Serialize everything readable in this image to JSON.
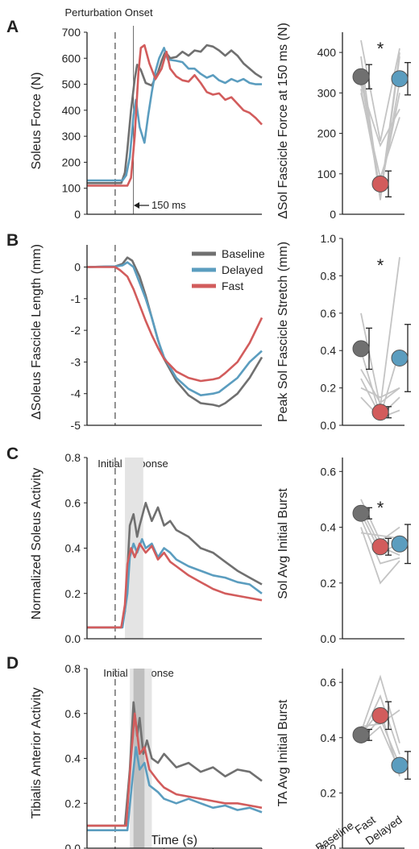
{
  "colors": {
    "baseline": "#707070",
    "delayed": "#5b9dbf",
    "fast": "#d25c5c",
    "subject": "#c4c4c4",
    "shade_light": "#e4e4e4",
    "shade_dark": "#b4b4b4"
  },
  "labels": {
    "panel_a": "A",
    "panel_b": "B",
    "panel_c": "C",
    "panel_d": "D",
    "perturbation_onset": "Perturbation Onset",
    "ms150": "150 ms",
    "initial_response": "Initial response",
    "x_axis_label": "Time (s)",
    "star": "*"
  },
  "legend": [
    "Baseline",
    "Delayed",
    "Fast"
  ],
  "conditions_x": [
    "Baseline",
    "Fast",
    "Delayed"
  ],
  "time_ticks": [
    "0.0",
    "0.4",
    "0.8",
    "1.2"
  ],
  "chart_data": [
    {
      "id": "A_trace",
      "type": "line",
      "ylabel": "Soleus Force (N)",
      "xlim": [
        -0.23,
        1.2
      ],
      "ylim": [
        0,
        700
      ],
      "yticks": [
        0,
        100,
        200,
        300,
        400,
        500,
        600,
        700
      ],
      "markers": {
        "onset": 0.0,
        "marker_150ms": 0.15
      },
      "series": [
        {
          "name": "Baseline",
          "x": [
            -0.23,
            0.05,
            0.08,
            0.1,
            0.13,
            0.16,
            0.18,
            0.21,
            0.25,
            0.3,
            0.35,
            0.38,
            0.41,
            0.45,
            0.5,
            0.55,
            0.6,
            0.65,
            0.7,
            0.75,
            0.8,
            0.85,
            0.9,
            0.95,
            1.0,
            1.05,
            1.1,
            1.15,
            1.2
          ],
          "y": [
            120,
            120,
            160,
            250,
            400,
            520,
            575,
            555,
            505,
            495,
            545,
            590,
            625,
            600,
            605,
            625,
            610,
            630,
            625,
            650,
            645,
            630,
            610,
            630,
            610,
            580,
            560,
            540,
            525
          ]
        },
        {
          "name": "Delayed",
          "x": [
            -0.23,
            0.06,
            0.09,
            0.12,
            0.15,
            0.17,
            0.2,
            0.24,
            0.27,
            0.3,
            0.33,
            0.36,
            0.4,
            0.43,
            0.5,
            0.55,
            0.6,
            0.65,
            0.7,
            0.75,
            0.8,
            0.85,
            0.9,
            0.95,
            1.0,
            1.05,
            1.1,
            1.15,
            1.2
          ],
          "y": [
            130,
            130,
            150,
            220,
            380,
            440,
            335,
            275,
            380,
            470,
            550,
            600,
            640,
            595,
            590,
            585,
            560,
            560,
            540,
            525,
            535,
            515,
            505,
            520,
            510,
            520,
            505,
            500,
            500
          ]
        },
        {
          "name": "Fast",
          "x": [
            -0.23,
            0.1,
            0.13,
            0.16,
            0.19,
            0.21,
            0.24,
            0.28,
            0.33,
            0.38,
            0.42,
            0.45,
            0.5,
            0.55,
            0.6,
            0.65,
            0.7,
            0.75,
            0.8,
            0.85,
            0.9,
            0.95,
            1.0,
            1.05,
            1.1,
            1.15,
            1.2
          ],
          "y": [
            110,
            110,
            140,
            300,
            540,
            640,
            650,
            580,
            520,
            560,
            625,
            560,
            530,
            515,
            510,
            535,
            505,
            470,
            460,
            465,
            440,
            450,
            425,
            400,
            390,
            370,
            345
          ]
        }
      ]
    },
    {
      "id": "A_dot",
      "type": "scatter",
      "ylabel": "ΔSol Fascicle Force at 150 ms (N)",
      "ylim": [
        0,
        450
      ],
      "yticks": [
        0,
        100,
        200,
        300,
        400
      ],
      "categories": [
        "Baseline",
        "Fast",
        "Delayed"
      ],
      "means": [
        340,
        75,
        335
      ],
      "errors": [
        30,
        32,
        40
      ],
      "significant": true,
      "subjects": [
        [
          430,
          180,
          410
        ],
        [
          390,
          45,
          400
        ],
        [
          360,
          35,
          390
        ],
        [
          340,
          50,
          330
        ],
        [
          320,
          170,
          260
        ],
        [
          300,
          90,
          240
        ],
        [
          310,
          60,
          300
        ]
      ]
    },
    {
      "id": "B_trace",
      "type": "line",
      "ylabel": "ΔSoleus Fascicle Length (mm)",
      "xlim": [
        -0.23,
        1.2
      ],
      "ylim": [
        -5,
        0.7
      ],
      "yticks": [
        0,
        -1,
        -2,
        -3,
        -4,
        -5
      ],
      "markers": {
        "onset": 0.0
      },
      "series": [
        {
          "name": "Baseline",
          "x": [
            -0.23,
            0.0,
            0.06,
            0.1,
            0.14,
            0.2,
            0.25,
            0.3,
            0.35,
            0.4,
            0.5,
            0.6,
            0.7,
            0.8,
            0.85,
            0.9,
            1.0,
            1.1,
            1.2
          ],
          "y": [
            0,
            0.02,
            0.1,
            0.3,
            0.2,
            -0.3,
            -0.9,
            -1.6,
            -2.3,
            -2.9,
            -3.6,
            -4.05,
            -4.3,
            -4.35,
            -4.4,
            -4.3,
            -4.0,
            -3.5,
            -2.85
          ]
        },
        {
          "name": "Delayed",
          "x": [
            -0.23,
            0.0,
            0.06,
            0.1,
            0.15,
            0.2,
            0.25,
            0.3,
            0.35,
            0.4,
            0.5,
            0.6,
            0.7,
            0.8,
            0.85,
            0.9,
            1.0,
            1.1,
            1.2
          ],
          "y": [
            0,
            0.02,
            0.05,
            0.15,
            0.0,
            -0.5,
            -1.0,
            -1.6,
            -2.3,
            -2.85,
            -3.5,
            -3.85,
            -4.05,
            -4.0,
            -3.95,
            -3.8,
            -3.5,
            -3.0,
            -2.65
          ]
        },
        {
          "name": "Fast",
          "x": [
            -0.23,
            0.0,
            0.04,
            0.1,
            0.15,
            0.2,
            0.25,
            0.3,
            0.35,
            0.4,
            0.5,
            0.6,
            0.7,
            0.8,
            0.85,
            0.9,
            1.0,
            1.1,
            1.2
          ],
          "y": [
            0,
            0,
            -0.1,
            -0.3,
            -0.7,
            -1.2,
            -1.7,
            -2.15,
            -2.55,
            -2.9,
            -3.3,
            -3.5,
            -3.6,
            -3.55,
            -3.5,
            -3.35,
            -3.0,
            -2.4,
            -1.6
          ]
        }
      ]
    },
    {
      "id": "B_dot",
      "type": "scatter",
      "ylabel": "Peak Sol Fascicle Stretch (mm)",
      "ylim": [
        0,
        1.0
      ],
      "yticks": [
        0.0,
        0.2,
        0.4,
        0.6,
        0.8,
        1.0
      ],
      "categories": [
        "Baseline",
        "Fast",
        "Delayed"
      ],
      "means": [
        0.41,
        0.07,
        0.36
      ],
      "errors": [
        0.11,
        0.03,
        0.18
      ],
      "significant": true,
      "subjects": [
        [
          0.6,
          0.1,
          0.9
        ],
        [
          0.4,
          0.05,
          0.4
        ],
        [
          0.3,
          0.12,
          0.2
        ],
        [
          0.25,
          0.05,
          0.15
        ],
        [
          0.2,
          0.15,
          0.2
        ],
        [
          0.15,
          0.04,
          0.08
        ]
      ]
    },
    {
      "id": "C_trace",
      "type": "line",
      "ylabel": "Normalized Soleus Activity",
      "xlim": [
        -0.23,
        1.2
      ],
      "ylim": [
        0,
        0.8
      ],
      "yticks": [
        0.0,
        0.2,
        0.4,
        0.6,
        0.8
      ],
      "markers": {
        "onset": 0.0
      },
      "shade": {
        "x0": 0.08,
        "x1": 0.23
      },
      "series": [
        {
          "name": "Baseline",
          "x": [
            -0.23,
            0.05,
            0.08,
            0.1,
            0.12,
            0.15,
            0.18,
            0.2,
            0.25,
            0.3,
            0.35,
            0.4,
            0.45,
            0.5,
            0.6,
            0.7,
            0.8,
            0.9,
            1.0,
            1.1,
            1.2
          ],
          "y": [
            0.05,
            0.05,
            0.12,
            0.3,
            0.5,
            0.55,
            0.45,
            0.5,
            0.6,
            0.52,
            0.58,
            0.5,
            0.52,
            0.48,
            0.45,
            0.4,
            0.38,
            0.34,
            0.3,
            0.27,
            0.24
          ]
        },
        {
          "name": "Delayed",
          "x": [
            -0.23,
            0.06,
            0.1,
            0.12,
            0.15,
            0.18,
            0.22,
            0.25,
            0.3,
            0.35,
            0.4,
            0.45,
            0.5,
            0.6,
            0.7,
            0.8,
            0.9,
            1.0,
            1.1,
            1.2
          ],
          "y": [
            0.05,
            0.05,
            0.2,
            0.36,
            0.42,
            0.38,
            0.44,
            0.4,
            0.42,
            0.36,
            0.4,
            0.38,
            0.35,
            0.32,
            0.3,
            0.28,
            0.27,
            0.25,
            0.24,
            0.2
          ]
        },
        {
          "name": "Fast",
          "x": [
            -0.23,
            0.05,
            0.08,
            0.1,
            0.13,
            0.16,
            0.2,
            0.25,
            0.3,
            0.35,
            0.4,
            0.45,
            0.5,
            0.6,
            0.7,
            0.8,
            0.9,
            1.0,
            1.1,
            1.2
          ],
          "y": [
            0.05,
            0.05,
            0.15,
            0.33,
            0.4,
            0.36,
            0.42,
            0.38,
            0.41,
            0.35,
            0.38,
            0.34,
            0.32,
            0.28,
            0.25,
            0.22,
            0.2,
            0.19,
            0.18,
            0.17
          ]
        }
      ]
    },
    {
      "id": "C_dot",
      "type": "scatter",
      "ylabel": "Sol Avg Initial Burst",
      "ylim": [
        0,
        0.65
      ],
      "yticks": [
        0.0,
        0.2,
        0.4,
        0.6
      ],
      "categories": [
        "Baseline",
        "Fast",
        "Delayed"
      ],
      "means": [
        0.45,
        0.33,
        0.34
      ],
      "errors": [
        0.02,
        0.03,
        0.07
      ],
      "significant": true,
      "subjects": [
        [
          0.5,
          0.35,
          0.4
        ],
        [
          0.47,
          0.33,
          0.3
        ],
        [
          0.45,
          0.31,
          0.34
        ],
        [
          0.43,
          0.27,
          0.29
        ],
        [
          0.4,
          0.2,
          0.28
        ],
        [
          0.38,
          0.37,
          0.36
        ]
      ]
    },
    {
      "id": "D_trace",
      "type": "line",
      "ylabel": "Tibialis Anterior Activity",
      "xlim": [
        -0.23,
        1.2
      ],
      "ylim": [
        0,
        0.8
      ],
      "yticks": [
        0.0,
        0.2,
        0.4,
        0.6,
        0.8
      ],
      "markers": {
        "onset": 0.0
      },
      "shade": {
        "x0": 0.12,
        "x1": 0.3
      },
      "shade_dark": {
        "x0": 0.15,
        "x1": 0.24
      },
      "series": [
        {
          "name": "Baseline",
          "x": [
            -0.23,
            0.08,
            0.12,
            0.15,
            0.18,
            0.2,
            0.23,
            0.26,
            0.3,
            0.35,
            0.4,
            0.5,
            0.6,
            0.7,
            0.8,
            0.9,
            1.0,
            1.1,
            1.2
          ],
          "y": [
            0.1,
            0.1,
            0.35,
            0.65,
            0.5,
            0.58,
            0.42,
            0.48,
            0.4,
            0.38,
            0.42,
            0.36,
            0.38,
            0.34,
            0.36,
            0.32,
            0.35,
            0.34,
            0.3
          ]
        },
        {
          "name": "Delayed",
          "x": [
            -0.23,
            0.1,
            0.14,
            0.17,
            0.2,
            0.24,
            0.28,
            0.35,
            0.4,
            0.5,
            0.6,
            0.7,
            0.8,
            0.9,
            1.0,
            1.1,
            1.2
          ],
          "y": [
            0.08,
            0.08,
            0.3,
            0.45,
            0.35,
            0.38,
            0.28,
            0.25,
            0.22,
            0.2,
            0.22,
            0.2,
            0.18,
            0.19,
            0.17,
            0.18,
            0.16
          ]
        },
        {
          "name": "Fast",
          "x": [
            -0.23,
            0.09,
            0.13,
            0.16,
            0.2,
            0.24,
            0.28,
            0.35,
            0.4,
            0.5,
            0.6,
            0.7,
            0.8,
            0.9,
            1.0,
            1.1,
            1.2
          ],
          "y": [
            0.1,
            0.1,
            0.4,
            0.6,
            0.42,
            0.45,
            0.35,
            0.3,
            0.27,
            0.24,
            0.23,
            0.22,
            0.21,
            0.2,
            0.2,
            0.19,
            0.18
          ]
        }
      ]
    },
    {
      "id": "D_dot",
      "type": "scatter",
      "ylabel": "TA Avg Initial Burst",
      "ylim": [
        0,
        0.65
      ],
      "yticks": [
        0.0,
        0.2,
        0.4,
        0.6
      ],
      "categories": [
        "Baseline",
        "Fast",
        "Delayed"
      ],
      "means": [
        0.41,
        0.48,
        0.3
      ],
      "errors": [
        0.02,
        0.05,
        0.05
      ],
      "significant": false,
      "subjects": [
        [
          0.42,
          0.62,
          0.38
        ],
        [
          0.4,
          0.55,
          0.34
        ],
        [
          0.44,
          0.45,
          0.5
        ],
        [
          0.38,
          0.44,
          0.28
        ],
        [
          0.41,
          0.5,
          0.26
        ],
        [
          0.39,
          0.47,
          0.3
        ]
      ]
    }
  ]
}
